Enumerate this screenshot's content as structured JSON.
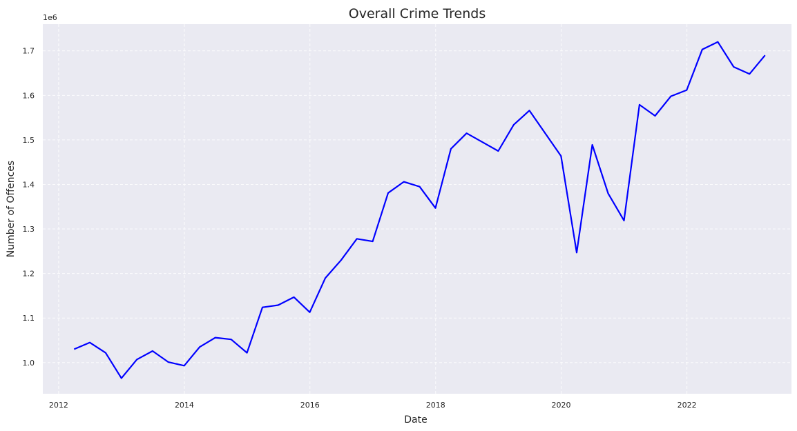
{
  "chart_data": {
    "type": "line",
    "title": "Overall Crime Trends",
    "xlabel": "Date",
    "ylabel": "Number of Offences",
    "y_offset_text": "1e6",
    "x_ticks": [
      "2012",
      "2014",
      "2016",
      "2018",
      "2020",
      "2022"
    ],
    "y_ticks": [
      "1.0",
      "1.1",
      "1.2",
      "1.3",
      "1.4",
      "1.5",
      "1.6",
      "1.7"
    ],
    "xlim": [
      "2011-10-01",
      "2023-09-01"
    ],
    "ylim": [
      0.93,
      1.76
    ],
    "grid": true,
    "background": "#eaeaf2",
    "line_color": "#0000ff",
    "series": [
      {
        "x": [
          "2012-03-31",
          "2012-06-30",
          "2012-09-30",
          "2012-12-31",
          "2013-03-31",
          "2013-06-30",
          "2013-09-30",
          "2013-12-31",
          "2014-03-31",
          "2014-06-30",
          "2014-09-30",
          "2014-12-31",
          "2015-03-31",
          "2015-06-30",
          "2015-09-30",
          "2015-12-31",
          "2016-03-31",
          "2016-06-30",
          "2016-09-30",
          "2016-12-31",
          "2017-03-31",
          "2017-06-30",
          "2017-09-30",
          "2017-12-31",
          "2018-03-31",
          "2018-06-30",
          "2018-09-30",
          "2018-12-31",
          "2019-03-31",
          "2019-06-30",
          "2019-09-30",
          "2019-12-31",
          "2020-03-31",
          "2020-06-30",
          "2020-09-30",
          "2020-12-31",
          "2021-03-31",
          "2021-06-30",
          "2021-09-30",
          "2021-12-31",
          "2022-03-31",
          "2022-06-30",
          "2022-09-30",
          "2022-12-31",
          "2023-03-31"
        ],
        "values": [
          1.03,
          1.045,
          1.022,
          0.965,
          1.007,
          1.026,
          1.001,
          0.993,
          1.035,
          1.056,
          1.052,
          1.022,
          1.124,
          1.129,
          1.147,
          1.113,
          1.19,
          1.23,
          1.278,
          1.272,
          1.381,
          1.406,
          1.395,
          1.347,
          1.48,
          1.515,
          1.495,
          1.475,
          1.534,
          1.566,
          1.515,
          1.464,
          1.247,
          1.489,
          1.38,
          1.319,
          1.579,
          1.554,
          1.598,
          1.612,
          1.703,
          1.72,
          1.664,
          1.648,
          1.69
        ]
      }
    ]
  }
}
